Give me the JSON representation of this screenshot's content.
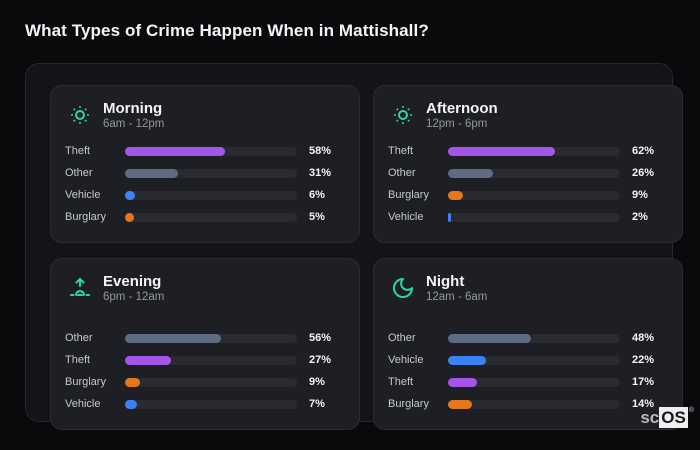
{
  "page": {
    "title": "What Types of Crime Happen When in Mattishall?"
  },
  "brand": {
    "prefix": "sc",
    "suffix": "OS",
    "registered": "®"
  },
  "colors": {
    "accent_teal": "#2fd5a0",
    "theft": "#a556e9",
    "other": "#5e6c83",
    "vehicle": "#3b82f6",
    "burglary": "#e5771a",
    "track": "#2a2b30",
    "panel_bg": "#1e1f24",
    "container_bg": "#131418",
    "page_bg": "#0a0a0d"
  },
  "panels": [
    {
      "title": "Morning",
      "time_range": "6am - 12pm",
      "icon": "sun-dim-icon",
      "bars": [
        {
          "label": "Theft",
          "value": "58%",
          "percent": 58,
          "color": "#a556e9"
        },
        {
          "label": "Other",
          "value": "31%",
          "percent": 31,
          "color": "#5e6c83"
        },
        {
          "label": "Vehicle",
          "value": "6%",
          "percent": 6,
          "color": "#3b82f6"
        },
        {
          "label": "Burglary",
          "value": "5%",
          "percent": 5,
          "color": "#e5771a"
        }
      ]
    },
    {
      "title": "Afternoon",
      "time_range": "12pm - 6pm",
      "icon": "sun-dim-icon",
      "bars": [
        {
          "label": "Theft",
          "value": "62%",
          "percent": 62,
          "color": "#a556e9"
        },
        {
          "label": "Other",
          "value": "26%",
          "percent": 26,
          "color": "#5e6c83"
        },
        {
          "label": "Burglary",
          "value": "9%",
          "percent": 9,
          "color": "#e5771a"
        },
        {
          "label": "Vehicle",
          "value": "2%",
          "percent": 2,
          "color": "#3b82f6"
        }
      ]
    },
    {
      "title": "Evening",
      "time_range": "6pm - 12am",
      "icon": "sunrise-icon",
      "bars": [
        {
          "label": "Other",
          "value": "56%",
          "percent": 56,
          "color": "#5e6c83"
        },
        {
          "label": "Theft",
          "value": "27%",
          "percent": 27,
          "color": "#a556e9"
        },
        {
          "label": "Burglary",
          "value": "9%",
          "percent": 9,
          "color": "#e5771a"
        },
        {
          "label": "Vehicle",
          "value": "7%",
          "percent": 7,
          "color": "#3b82f6"
        }
      ]
    },
    {
      "title": "Night",
      "time_range": "12am - 6am",
      "icon": "moon-icon",
      "bars": [
        {
          "label": "Other",
          "value": "48%",
          "percent": 48,
          "color": "#5e6c83"
        },
        {
          "label": "Vehicle",
          "value": "22%",
          "percent": 22,
          "color": "#3b82f6"
        },
        {
          "label": "Theft",
          "value": "17%",
          "percent": 17,
          "color": "#a556e9"
        },
        {
          "label": "Burglary",
          "value": "14%",
          "percent": 14,
          "color": "#e5771a"
        }
      ]
    }
  ],
  "chart_data": [
    {
      "type": "bar",
      "orientation": "horizontal",
      "title": "Morning (6am - 12pm)",
      "categories": [
        "Theft",
        "Other",
        "Vehicle",
        "Burglary"
      ],
      "values": [
        58,
        31,
        6,
        5
      ],
      "unit": "%",
      "xlim": [
        0,
        100
      ],
      "grid": false,
      "legend": false
    },
    {
      "type": "bar",
      "orientation": "horizontal",
      "title": "Afternoon (12pm - 6pm)",
      "categories": [
        "Theft",
        "Other",
        "Burglary",
        "Vehicle"
      ],
      "values": [
        62,
        26,
        9,
        2
      ],
      "unit": "%",
      "xlim": [
        0,
        100
      ],
      "grid": false,
      "legend": false
    },
    {
      "type": "bar",
      "orientation": "horizontal",
      "title": "Evening (6pm - 12am)",
      "categories": [
        "Other",
        "Theft",
        "Burglary",
        "Vehicle"
      ],
      "values": [
        56,
        27,
        9,
        7
      ],
      "unit": "%",
      "xlim": [
        0,
        100
      ],
      "grid": false,
      "legend": false
    },
    {
      "type": "bar",
      "orientation": "horizontal",
      "title": "Night (12am - 6am)",
      "categories": [
        "Other",
        "Vehicle",
        "Theft",
        "Burglary"
      ],
      "values": [
        48,
        22,
        17,
        14
      ],
      "unit": "%",
      "xlim": [
        0,
        100
      ],
      "grid": false,
      "legend": false
    }
  ]
}
